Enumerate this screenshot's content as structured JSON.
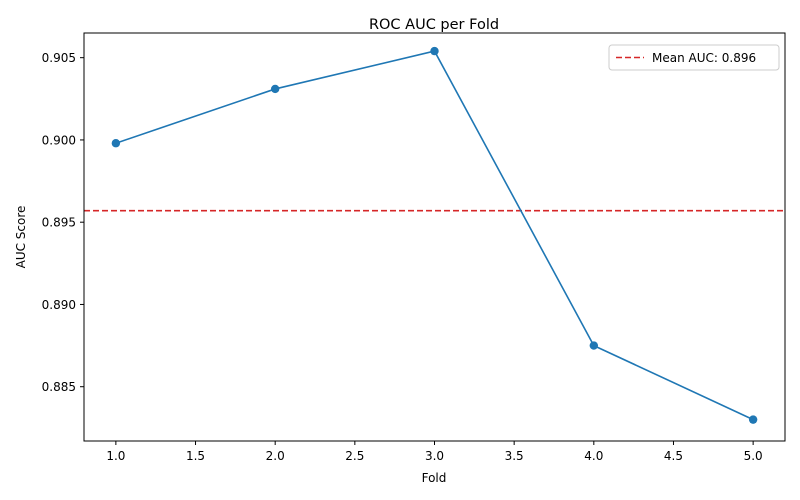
{
  "chart_data": {
    "type": "line",
    "title": "ROC AUC per Fold",
    "xlabel": "Fold",
    "ylabel": "AUC Score",
    "xlim": [
      0.8,
      5.2
    ],
    "ylim": [
      0.8817,
      0.9065
    ],
    "x_ticks": [
      1.0,
      1.5,
      2.0,
      2.5,
      3.0,
      3.5,
      4.0,
      4.5,
      5.0
    ],
    "x_tick_labels": [
      "1.0",
      "1.5",
      "2.0",
      "2.5",
      "3.0",
      "3.5",
      "4.0",
      "4.5",
      "5.0"
    ],
    "y_ticks": [
      0.885,
      0.89,
      0.895,
      0.9,
      0.905
    ],
    "y_tick_labels": [
      "0.885",
      "0.890",
      "0.895",
      "0.900",
      "0.905"
    ],
    "grid": false,
    "legend_position": "top-right",
    "series": [
      {
        "x": [
          1,
          2,
          3,
          4,
          5
        ],
        "y": [
          0.8998,
          0.9031,
          0.9054,
          0.8875,
          0.883
        ],
        "color": "#1f77b4",
        "marker": "circle"
      }
    ],
    "reference_lines": [
      {
        "orientation": "horizontal",
        "y": 0.8957,
        "label": "Mean AUC: 0.896",
        "color": "#d62728",
        "style": "dashed"
      }
    ]
  }
}
